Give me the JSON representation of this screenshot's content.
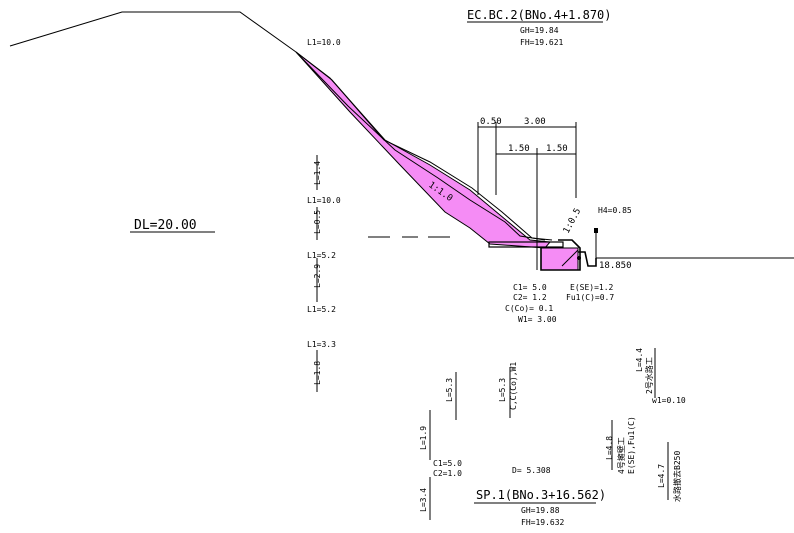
{
  "section_title": "EC.BC.2(BNo.4+1.870)",
  "section_gh": "GH=19.84",
  "section_fh": "FH=19.621",
  "bottom_title": "SP.1(BNo.3+16.562)",
  "bottom_gh": "GH=19.88",
  "bottom_fh": "FH=19.632",
  "datum": "DL=20.00",
  "left_column": {
    "l1_top": "L1=10.0",
    "l_1_4": "L=1.4",
    "l1_10": "L1=10.0",
    "l_0_5": "L=0.5",
    "l1_5_2a": "L1=5.2",
    "l_2_9": "L=2.9",
    "l1_5_2b": "L1=5.2",
    "l1_3_3": "L1=3.3",
    "l_1_8": "L=1.8"
  },
  "dimensions": {
    "d_0_50": "0.50",
    "d_3_00": "3.00",
    "d_1_50a": "1.50",
    "d_1_50b": "1.50",
    "slope_1_1": "1:1.0",
    "slope_1_05": "1:0.5",
    "h4": "H4=0.85",
    "elev": "18.850"
  },
  "params": {
    "c1": "C1= 5.0",
    "c2": "C2= 1.2",
    "cco": "C(Co)= 0.1",
    "w1": "W1= 3.00",
    "ese": "E(SE)=1.2",
    "fu1": "Fu1(C)=0.7"
  },
  "lower": {
    "l_5_3a": "L=5.3",
    "l_5_3b": "L=5.3",
    "c_cco_w1": "C,C(Co),W1",
    "l_1_9": "L=1.9",
    "c1_50": "C1=5.0",
    "c2_10": "C2=1.0",
    "l_3_4": "L=3.4",
    "d_5308": "D= 5.308",
    "l_4_4": "L=4.4",
    "suiro2": "2号水路工",
    "w1_010": "w1=0.10",
    "l_4_8": "L=4.8",
    "yoheki4": "4号擁壁工",
    "ese_fu1c": "E(SE),Fu1(C)",
    "l_4_7": "L=4.7",
    "suiro_tekkyo": "水路撤去B250"
  }
}
